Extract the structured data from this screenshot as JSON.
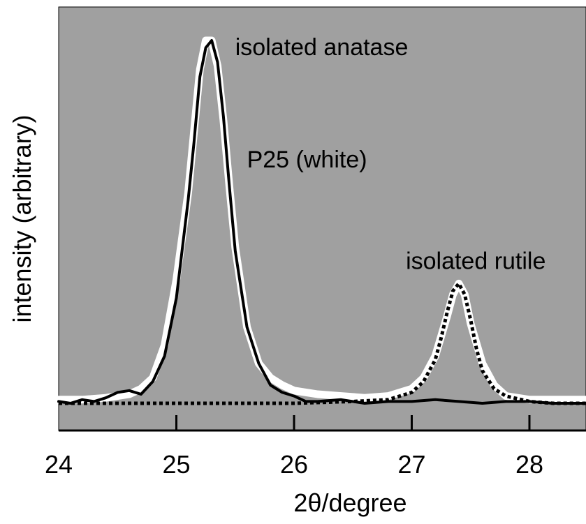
{
  "chart_data": {
    "type": "line",
    "title": "",
    "xlabel": "2θ/degree",
    "ylabel": "intensity (arbitrary)",
    "xlim": [
      24,
      28.5
    ],
    "ylim": [
      0,
      1.1
    ],
    "xticks": [
      24,
      25,
      26,
      27,
      28
    ],
    "grid": false,
    "background_color": "#a0a0a0",
    "annotations": [
      {
        "text": "isolated anatase",
        "x": 25.5,
        "y": 0.96
      },
      {
        "text": "P25 (white)",
        "x": 25.6,
        "y": 0.65
      },
      {
        "text": "isolated rutile",
        "x": 26.95,
        "y": 0.37
      }
    ],
    "series": [
      {
        "style": "white-thick",
        "color": "#ffffff",
        "x": [
          24.0,
          24.2,
          24.4,
          24.6,
          24.7,
          24.8,
          24.9,
          25.0,
          25.1,
          25.15,
          25.2,
          25.25,
          25.3,
          25.35,
          25.4,
          25.45,
          25.5,
          25.6,
          25.7,
          25.8,
          25.9,
          26.0,
          26.2,
          26.4,
          26.6,
          26.8,
          27.0,
          27.1,
          27.2,
          27.3,
          27.35,
          27.4,
          27.45,
          27.5,
          27.6,
          27.7,
          27.8,
          28.0,
          28.2,
          28.5
        ],
        "y": [
          0.01,
          0.01,
          0.015,
          0.025,
          0.04,
          0.07,
          0.16,
          0.34,
          0.58,
          0.75,
          0.92,
          1.0,
          1.0,
          0.93,
          0.78,
          0.6,
          0.43,
          0.21,
          0.11,
          0.07,
          0.05,
          0.035,
          0.025,
          0.02,
          0.015,
          0.02,
          0.04,
          0.07,
          0.13,
          0.24,
          0.3,
          0.33,
          0.3,
          0.22,
          0.11,
          0.05,
          0.02,
          0.01,
          0.01,
          0.01
        ]
      },
      {
        "name": "isolated anatase",
        "style": "black-solid",
        "color": "#000000",
        "x": [
          24.0,
          24.1,
          24.2,
          24.3,
          24.4,
          24.5,
          24.6,
          24.7,
          24.8,
          24.9,
          25.0,
          25.1,
          25.15,
          25.2,
          25.25,
          25.3,
          25.35,
          25.4,
          25.45,
          25.5,
          25.6,
          25.7,
          25.8,
          25.9,
          26.0,
          26.1,
          26.2,
          26.4,
          26.6,
          26.8,
          27.0,
          27.2,
          27.4,
          27.6,
          27.8,
          28.0,
          28.2,
          28.5
        ],
        "y": [
          0.005,
          0.0,
          0.01,
          0.005,
          0.015,
          0.03,
          0.035,
          0.025,
          0.06,
          0.13,
          0.29,
          0.56,
          0.72,
          0.9,
          0.98,
          1.0,
          0.94,
          0.79,
          0.6,
          0.42,
          0.21,
          0.11,
          0.05,
          0.03,
          0.02,
          0.005,
          0.005,
          0.01,
          0.0,
          0.005,
          0.005,
          0.01,
          0.005,
          0.0,
          0.005,
          0.005,
          0.0,
          0.0
        ]
      },
      {
        "name": "isolated rutile",
        "style": "black-dotted",
        "color": "#000000",
        "x": [
          24.0,
          24.5,
          25.0,
          25.5,
          26.0,
          26.5,
          26.8,
          27.0,
          27.1,
          27.2,
          27.25,
          27.3,
          27.35,
          27.4,
          27.45,
          27.5,
          27.55,
          27.6,
          27.7,
          27.8,
          28.0,
          28.2,
          28.5
        ],
        "y": [
          0.0,
          0.0,
          0.0,
          0.0,
          0.0,
          0.005,
          0.01,
          0.03,
          0.06,
          0.12,
          0.18,
          0.25,
          0.31,
          0.33,
          0.3,
          0.23,
          0.15,
          0.09,
          0.04,
          0.02,
          0.005,
          0.0,
          0.0
        ]
      }
    ]
  }
}
